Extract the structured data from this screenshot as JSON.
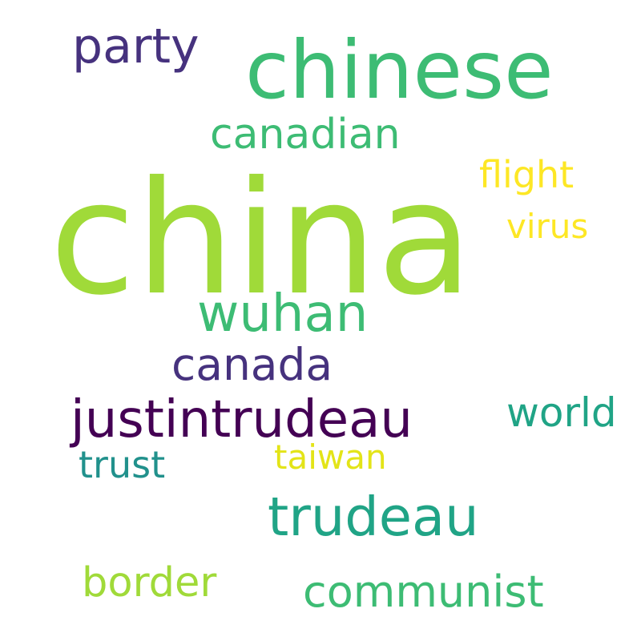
{
  "words": {
    "china": {
      "text": "china",
      "color": "#a0da39"
    },
    "chinese": {
      "text": "chinese",
      "color": "#3dbc74"
    },
    "party": {
      "text": "party",
      "color": "#46327e"
    },
    "canadian": {
      "text": "canadian",
      "color": "#3dbc74"
    },
    "flight": {
      "text": "flight",
      "color": "#fde725"
    },
    "virus": {
      "text": "virus",
      "color": "#fde725"
    },
    "wuhan": {
      "text": "wuhan",
      "color": "#3dbc74"
    },
    "canada": {
      "text": "canada",
      "color": "#46327e"
    },
    "justintrudeau": {
      "text": "justintrudeau",
      "color": "#440154"
    },
    "world": {
      "text": "world",
      "color": "#20a486"
    },
    "trust": {
      "text": "trust",
      "color": "#21918c"
    },
    "taiwan": {
      "text": "taiwan",
      "color": "#e3e418"
    },
    "trudeau": {
      "text": "trudeau",
      "color": "#20a486"
    },
    "border": {
      "text": "border",
      "color": "#a0da39"
    },
    "communist": {
      "text": "communist",
      "color": "#3dbc74"
    }
  }
}
